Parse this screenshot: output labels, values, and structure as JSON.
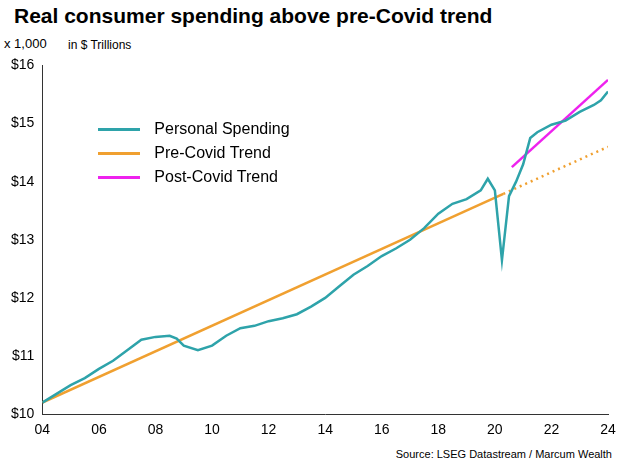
{
  "chart_data": {
    "type": "line",
    "title": "Real consumer spending above pre-Covid trend",
    "ylabel": "in $ Trillions",
    "annotations": [
      "x 1,000"
    ],
    "source": "Source: LSEG Datastream / Marcum Wealth",
    "xlim": [
      2004,
      2024
    ],
    "xticks": [
      {
        "value": 2004,
        "label": "04"
      },
      {
        "value": 2006,
        "label": "06"
      },
      {
        "value": 2008,
        "label": "08"
      },
      {
        "value": 2010,
        "label": "10"
      },
      {
        "value": 2012,
        "label": "12"
      },
      {
        "value": 2014,
        "label": "14"
      },
      {
        "value": 2016,
        "label": "16"
      },
      {
        "value": 2018,
        "label": "18"
      },
      {
        "value": 2020,
        "label": "20"
      },
      {
        "value": 2022,
        "label": "22"
      },
      {
        "value": 2024,
        "label": "24"
      }
    ],
    "ylim": [
      10,
      16
    ],
    "yticks": [
      {
        "value": 10,
        "label": "$10"
      },
      {
        "value": 11,
        "label": "$11"
      },
      {
        "value": 12,
        "label": "$12"
      },
      {
        "value": 13,
        "label": "$13"
      },
      {
        "value": 14,
        "label": "$14"
      },
      {
        "value": 15,
        "label": "$15"
      },
      {
        "value": 16,
        "label": "$16"
      }
    ],
    "grid": false,
    "legend": "upper left",
    "series": [
      {
        "name": "Personal Spending",
        "color": "#2ea3aa",
        "line_style": "solid",
        "x": [
          2004.0,
          2004.5,
          2005.0,
          2005.5,
          2006.0,
          2006.5,
          2007.0,
          2007.5,
          2008.0,
          2008.5,
          2008.75,
          2009.0,
          2009.5,
          2010.0,
          2010.5,
          2011.0,
          2011.5,
          2012.0,
          2012.5,
          2013.0,
          2013.5,
          2014.0,
          2014.5,
          2015.0,
          2015.5,
          2016.0,
          2016.5,
          2017.0,
          2017.5,
          2018.0,
          2018.5,
          2019.0,
          2019.5,
          2019.75,
          2020.0,
          2020.25,
          2020.5,
          2020.75,
          2021.0,
          2021.25,
          2021.5,
          2022.0,
          2022.5,
          2023.0,
          2023.5,
          2023.75,
          2024.0
        ],
        "values": [
          10.2,
          10.35,
          10.5,
          10.62,
          10.78,
          10.92,
          11.1,
          11.28,
          11.33,
          11.35,
          11.3,
          11.18,
          11.1,
          11.18,
          11.35,
          11.48,
          11.52,
          11.6,
          11.65,
          11.72,
          11.85,
          12.0,
          12.2,
          12.4,
          12.55,
          12.72,
          12.85,
          13.0,
          13.2,
          13.45,
          13.62,
          13.7,
          13.85,
          14.05,
          13.85,
          12.65,
          13.75,
          14.0,
          14.3,
          14.75,
          14.85,
          14.98,
          15.05,
          15.2,
          15.32,
          15.4,
          15.55
        ]
      },
      {
        "name": "Pre-Covid Trend",
        "color": "#f0a030",
        "line_style": "solid",
        "x": [
          2004.0,
          2020.3
        ],
        "values": [
          10.2,
          13.79
        ]
      },
      {
        "name": "Pre-Covid Trend",
        "color": "#f0a030",
        "line_style": "dotted",
        "x": [
          2020.3,
          2024.0
        ],
        "values": [
          13.79,
          14.6
        ]
      },
      {
        "name": "Post-Covid Trend",
        "color": "#ee22ee",
        "line_style": "solid",
        "x": [
          2020.6,
          2024.0
        ],
        "values": [
          14.25,
          15.75
        ]
      }
    ]
  }
}
